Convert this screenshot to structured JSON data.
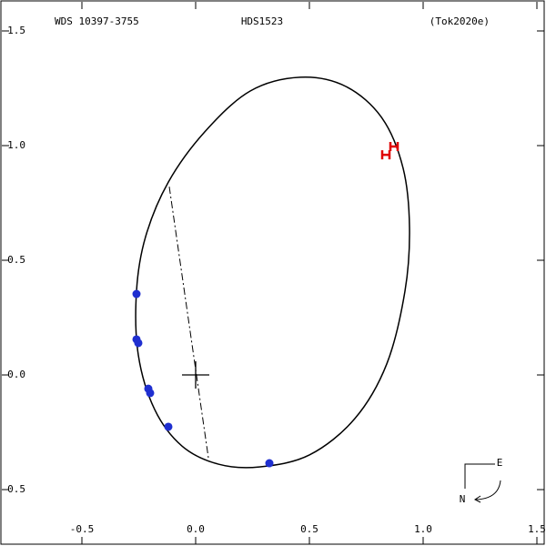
{
  "chart_data": {
    "type": "orbit",
    "title": "HDS1523",
    "left_label": "WDS 10397-3755",
    "right_label": "(Tok2020e)",
    "compass": {
      "east": "E",
      "north": "N"
    },
    "xlim": [
      -0.852,
      1.532
    ],
    "ylim": [
      -0.738,
      1.627
    ],
    "xticks": [
      -0.5,
      {
        "value": 0,
        "label": "0.0"
      },
      0.5,
      {
        "value": 1,
        "label": "1.0"
      },
      1.5
    ],
    "yticks": [
      1.5,
      {
        "value": 1,
        "label": "1.0"
      },
      0.5,
      {
        "value": 0,
        "label": "0.0"
      },
      -0.5
    ],
    "orbit": {
      "color": "#000000",
      "x": [
        0.46,
        0.66,
        0.82,
        0.912,
        0.94,
        0.92,
        0.84,
        0.7,
        0.5,
        0.28,
        0.1,
        -0.06,
        -0.18,
        -0.252,
        -0.26,
        -0.22,
        -0.12,
        0.04,
        0.24
      ],
      "y": [
        1.298,
        1.258,
        1.119,
        0.901,
        0.643,
        0.365,
        0.048,
        -0.19,
        -0.349,
        -0.401,
        -0.389,
        -0.31,
        -0.151,
        0.087,
        0.365,
        0.603,
        0.841,
        1.06,
        1.238
      ]
    },
    "node_line": {
      "color": "#000000",
      "x": [
        -0.116,
        0.056
      ],
      "y": [
        0.821,
        -0.361
      ]
    },
    "primary": {
      "x": 0,
      "y": 0
    },
    "observations": {
      "color": "#1f2fd0",
      "x": [
        -0.26,
        -0.26,
        -0.252,
        -0.208,
        -0.2,
        -0.12,
        0.324
      ],
      "y": [
        0.353,
        0.155,
        0.139,
        -0.06,
        -0.079,
        -0.226,
        -0.385
      ]
    },
    "speckle": {
      "color": "#e00000",
      "x": [
        0.836,
        0.872
      ],
      "y": [
        0.96,
        0.996
      ]
    }
  }
}
